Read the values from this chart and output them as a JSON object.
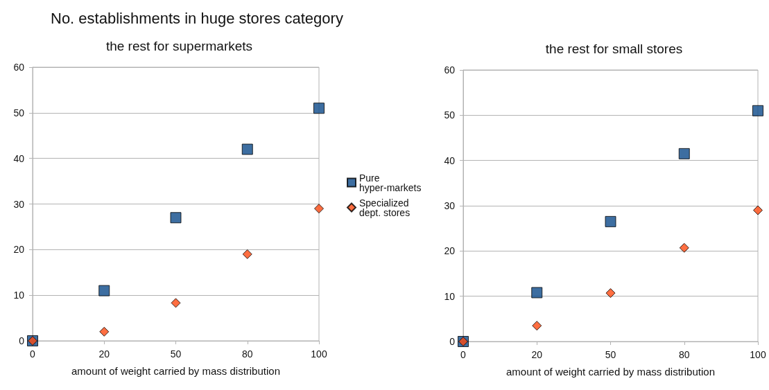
{
  "chart_data": [
    {
      "type": "scatter",
      "title": "No. establishments in huge stores category",
      "subtitle": "the rest for supermarkets",
      "xlabel": "amount of weight carried by mass distribution",
      "categories": [
        "0",
        "20",
        "50",
        "80",
        "100"
      ],
      "series": [
        {
          "name": "Pure hyper-markets",
          "color": "#0d4a8a",
          "marker": "square",
          "values": [
            0,
            11,
            27,
            42,
            51
          ]
        },
        {
          "name": "Specialized dept. stores",
          "color": "#ff4a12",
          "marker": "diamond",
          "values": [
            0,
            2,
            8.3,
            19,
            29
          ]
        }
      ],
      "ylim": [
        0,
        60
      ],
      "yticks": [
        0,
        10,
        20,
        30,
        40,
        50,
        60
      ],
      "grid": "y",
      "legend": "right"
    },
    {
      "type": "scatter",
      "subtitle": "the rest for small stores",
      "xlabel": "amount of weight carried by mass distribution",
      "categories": [
        "0",
        "20",
        "50",
        "80",
        "100"
      ],
      "series": [
        {
          "color": "#0d4a8a",
          "marker": "square",
          "values": [
            0,
            10.8,
            26.5,
            41.5,
            51
          ]
        },
        {
          "color": "#ff4a12",
          "marker": "diamond",
          "values": [
            0,
            3.5,
            10.7,
            20.7,
            29
          ]
        }
      ],
      "ylim": [
        0,
        60
      ],
      "yticks": [
        0,
        10,
        20,
        30,
        40,
        50,
        60
      ],
      "grid": "y",
      "legend": false
    }
  ]
}
